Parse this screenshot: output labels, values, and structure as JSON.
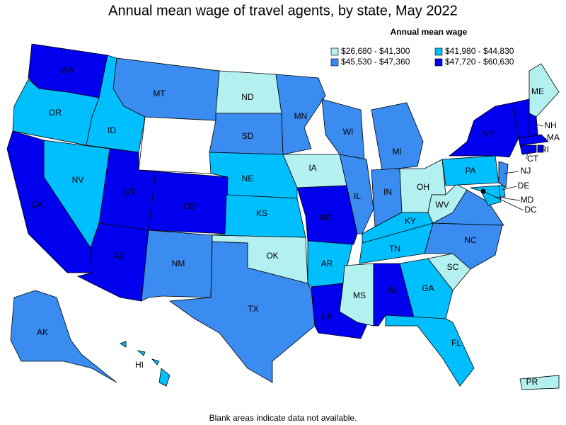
{
  "title": "Annual mean wage of travel agents, by state, May 2022",
  "legend": {
    "title": "Annual mean wage",
    "items": [
      {
        "label": "$26,680 - $41,300",
        "color": "#b3f0f0"
      },
      {
        "label": "$41,980 - $44,830",
        "color": "#00bfff"
      },
      {
        "label": "$45,530 - $47,360",
        "color": "#3a8cf0"
      },
      {
        "label": "$47,720 - $60,630",
        "color": "#0000ee"
      }
    ]
  },
  "states": [
    {
      "label": "WA",
      "class": 3
    },
    {
      "label": "OR",
      "class": 1
    },
    {
      "label": "ID",
      "class": 1
    },
    {
      "label": "MT",
      "class": 2
    },
    {
      "label": "ND",
      "class": 0
    },
    {
      "label": "SD",
      "class": 2
    },
    {
      "label": "NE",
      "class": 1
    },
    {
      "label": "CO",
      "class": 3
    },
    {
      "label": "UT",
      "class": 3
    },
    {
      "label": "NV",
      "class": 1
    },
    {
      "label": "CA",
      "class": 3
    },
    {
      "label": "AZ",
      "class": 3
    },
    {
      "label": "NM",
      "class": 2
    },
    {
      "label": "TX",
      "class": 2
    },
    {
      "label": "OK",
      "class": 0
    },
    {
      "label": "KS",
      "class": 1
    },
    {
      "label": "MN",
      "class": 2
    },
    {
      "label": "IA",
      "class": 0
    },
    {
      "label": "MO",
      "class": 3
    },
    {
      "label": "AR",
      "class": 1
    },
    {
      "label": "LA",
      "class": 3
    },
    {
      "label": "WI",
      "class": 2
    },
    {
      "label": "IL",
      "class": 2
    },
    {
      "label": "MI",
      "class": 2
    },
    {
      "label": "IN",
      "class": 2
    },
    {
      "label": "OH",
      "class": 0
    },
    {
      "label": "KY",
      "class": 1
    },
    {
      "label": "TN",
      "class": 1
    },
    {
      "label": "MS",
      "class": 0
    },
    {
      "label": "AL",
      "class": 3
    },
    {
      "label": "GA",
      "class": 1
    },
    {
      "label": "FL",
      "class": 1
    },
    {
      "label": "SC",
      "class": 0
    },
    {
      "label": "NC",
      "class": 2
    },
    {
      "label": "WV",
      "class": 0
    },
    {
      "label": null,
      "class": 2
    },
    {
      "label": "PA",
      "class": 1
    },
    {
      "label": "NY",
      "class": 3
    },
    {
      "label": "ME",
      "class": 0
    },
    {
      "label": "NH",
      "class": 3
    },
    {
      "label": null,
      "class": 3
    },
    {
      "label": "MA",
      "class": 3
    },
    {
      "label": "RI",
      "class": 3
    },
    {
      "label": "CT",
      "class": 3
    },
    {
      "label": "NJ",
      "class": 2
    },
    {
      "label": "DE",
      "class": 1
    },
    {
      "label": "MD",
      "class": 1
    },
    {
      "label": "DC",
      "class": 3
    },
    {
      "label": "HI",
      "class": 1
    },
    {
      "label": "AK",
      "class": 2
    },
    {
      "label": "PR",
      "class": 0
    }
  ],
  "note": "Blank areas indicate data not available."
}
